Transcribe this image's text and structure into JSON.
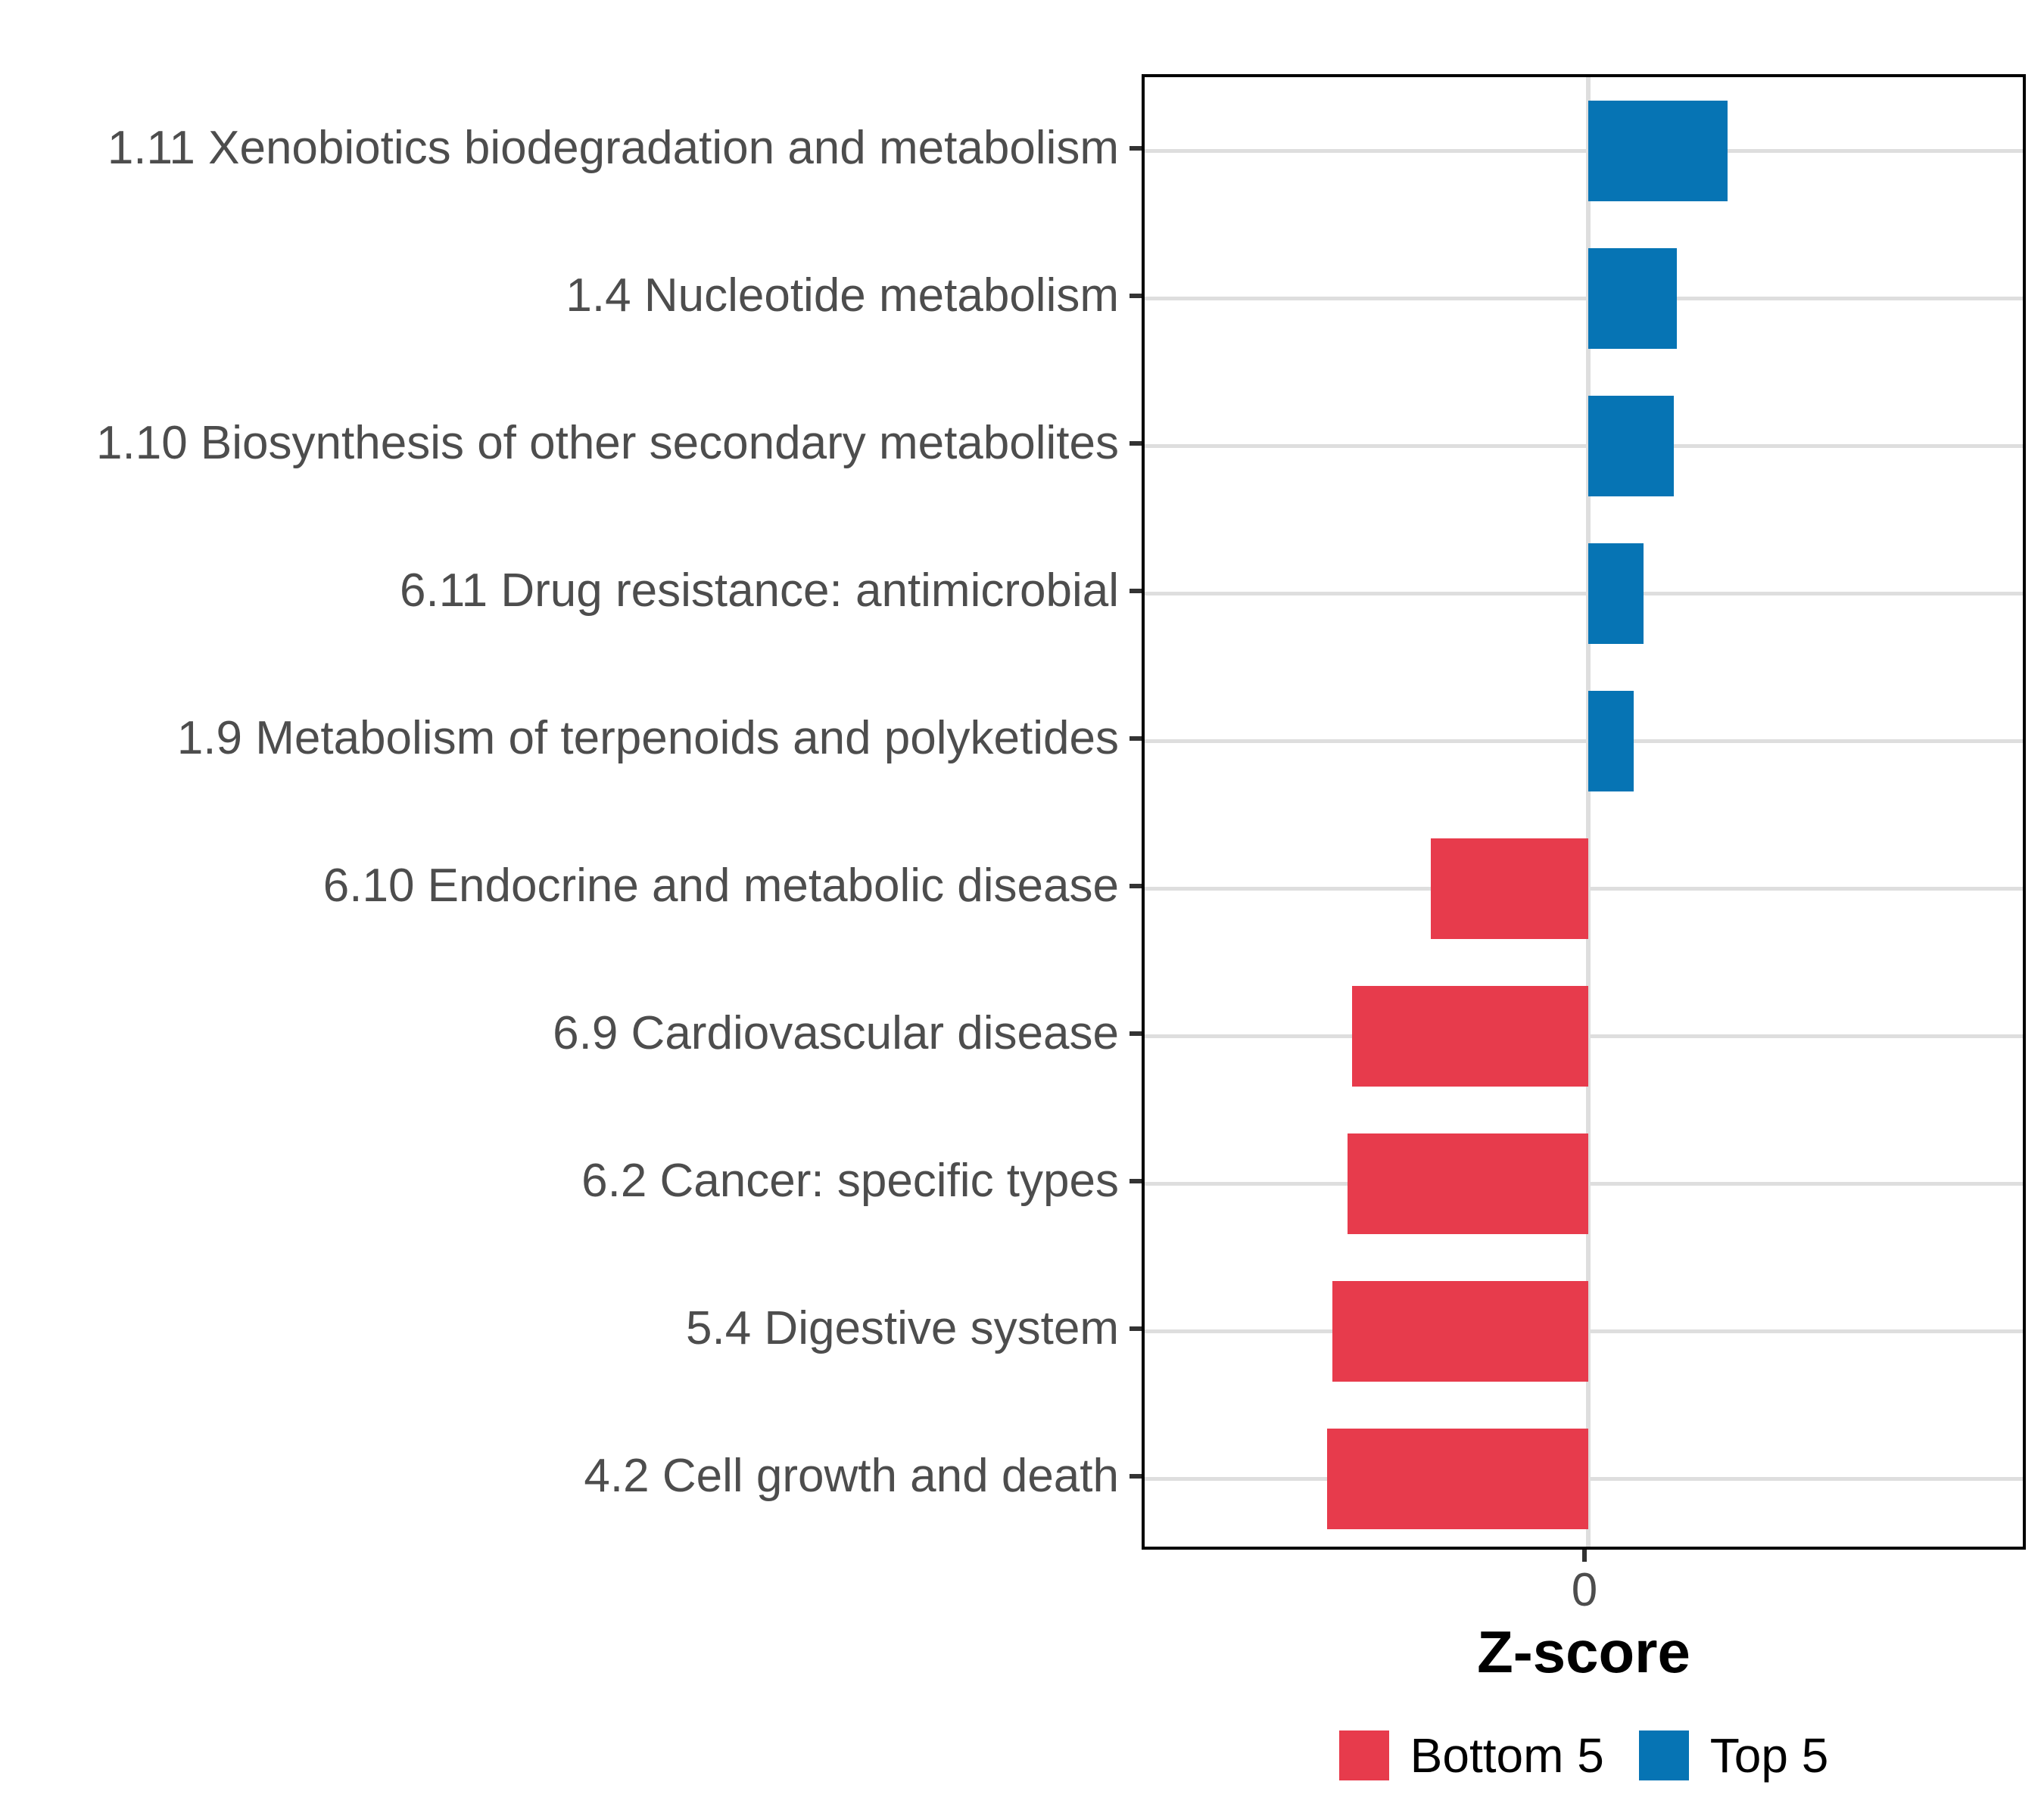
{
  "figure": {
    "background": "#FFFFFF"
  },
  "x_axis": {
    "tick_label": "0",
    "title": "Z-score"
  },
  "legend": {
    "position": "bottom-center",
    "items": [
      {
        "label": "Bottom 5",
        "color": "#E73B4C"
      },
      {
        "label": "Top 5",
        "color": "#0674B4"
      }
    ]
  },
  "colors": {
    "top5_bar": "#0674B4",
    "bottom5_bar": "#E73B4C",
    "gridline": "#DEDEDE",
    "axis_text": "#4D4D4D",
    "tick_mark": "#333333",
    "panel_border": "#000000"
  },
  "chart_data": {
    "type": "bar",
    "orientation": "horizontal",
    "title": "",
    "xlabel": "Z-score",
    "ylabel": "",
    "xlim": [
      -1.75,
      1.74
    ],
    "x_tick_values": [
      0
    ],
    "grid": {
      "horizontal_major": true,
      "vertical_zero_line": true,
      "minor": false
    },
    "legend_position": "bottom-center",
    "categories": [
      "1.11 Xenobiotics biodegradation and metabolism",
      "1.4 Nucleotide metabolism",
      "1.10 Biosynthesis of other secondary metabolites",
      "6.11 Drug resistance: antimicrobial",
      "1.9 Metabolism of terpenoids and polyketides",
      "6.10 Endocrine and metabolic disease",
      "6.9 Cardiovascular disease",
      "6.2 Cancer: specific types",
      "5.4 Digestive system",
      "4.2 Cell growth and death"
    ],
    "values": [
      0.55,
      0.35,
      0.34,
      0.22,
      0.18,
      -0.62,
      -0.93,
      -0.95,
      -1.01,
      -1.03
    ],
    "groups": [
      "Top 5",
      "Top 5",
      "Top 5",
      "Top 5",
      "Top 5",
      "Bottom 5",
      "Bottom 5",
      "Bottom 5",
      "Bottom 5",
      "Bottom 5"
    ]
  }
}
